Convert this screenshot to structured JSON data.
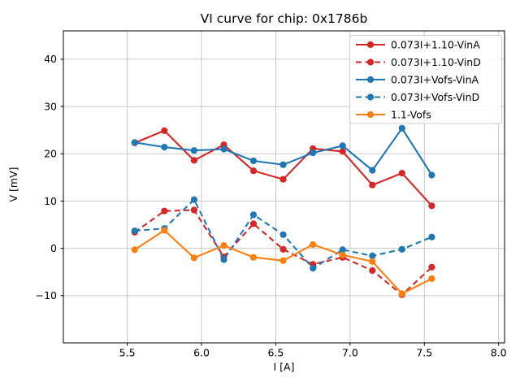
{
  "title": "VI curve for chip: 0x1786b",
  "colors": {
    "red": "#d62728",
    "blue": "#1f77b4",
    "orange": "#ff7f0e",
    "grid": "#c8c8c8",
    "spine": "#000000",
    "legend_border": "#cccccc",
    "background": "#ffffff"
  },
  "chart_data": {
    "type": "line",
    "title": "VI curve for chip: 0x1786b",
    "xlabel": "I [A]",
    "ylabel": "V [mV]",
    "xlim": [
      5.07,
      8.04
    ],
    "ylim": [
      -20,
      46
    ],
    "xticks": [
      5.5,
      6.0,
      6.5,
      7.0,
      7.5,
      8.0
    ],
    "xtick_labels": [
      "5.5",
      "6.0",
      "6.5",
      "7.0",
      "7.5",
      "8.0"
    ],
    "yticks": [
      -10,
      0,
      10,
      20,
      30,
      40
    ],
    "ytick_labels": [
      "−10",
      "0",
      "10",
      "20",
      "30",
      "40"
    ],
    "grid": true,
    "legend_position": "upper right",
    "x": [
      5.55,
      5.75,
      5.95,
      6.15,
      6.35,
      6.55,
      6.75,
      6.95,
      7.15,
      7.35,
      7.55
    ],
    "series": [
      {
        "name": "0.073I+1.10-VinA",
        "color": "#d62728",
        "style": "solid",
        "marker": "circle",
        "values": [
          22.3,
          24.9,
          18.6,
          21.9,
          16.4,
          14.6,
          21.1,
          20.5,
          13.4,
          15.9,
          9.0
        ]
      },
      {
        "name": "0.073I+1.10-VinD",
        "color": "#d62728",
        "style": "dashed",
        "marker": "circle",
        "values": [
          3.4,
          7.9,
          8.1,
          -1.8,
          5.2,
          -0.2,
          -3.4,
          -1.9,
          -4.7,
          -9.8,
          -4.0
        ]
      },
      {
        "name": "0.073I+Vofs-VinA",
        "color": "#1f77b4",
        "style": "solid",
        "marker": "circle",
        "values": [
          22.4,
          21.4,
          20.7,
          21.0,
          18.5,
          17.7,
          20.2,
          21.7,
          16.5,
          25.4,
          15.5
        ]
      },
      {
        "name": "0.073I+Vofs-VinD",
        "color": "#1f77b4",
        "style": "dashed",
        "marker": "circle",
        "values": [
          3.7,
          4.2,
          10.3,
          -2.4,
          7.1,
          2.9,
          -4.2,
          -0.3,
          -1.6,
          -0.2,
          2.4
        ]
      },
      {
        "name": "1.1-Vofs",
        "color": "#ff7f0e",
        "style": "solid",
        "marker": "circle",
        "values": [
          -0.3,
          3.8,
          -2.0,
          0.6,
          -1.9,
          -2.6,
          0.8,
          -1.4,
          -2.8,
          -9.6,
          -6.4
        ]
      }
    ]
  }
}
